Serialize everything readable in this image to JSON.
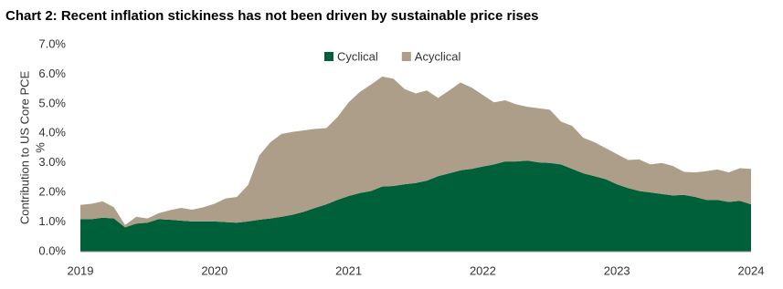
{
  "chart_data": {
    "type": "stacked-area",
    "title": "Chart 2: Recent inflation stickiness has not been driven by sustainable price rises",
    "y_label": [
      "Contribution to US Core PCE",
      "%"
    ],
    "categories": [
      "2019",
      null,
      null,
      null,
      null,
      null,
      null,
      null,
      null,
      null,
      null,
      null,
      "2020",
      null,
      null,
      null,
      null,
      null,
      null,
      null,
      null,
      null,
      null,
      null,
      "2021",
      null,
      null,
      null,
      null,
      null,
      null,
      null,
      null,
      null,
      null,
      null,
      "2022",
      null,
      null,
      null,
      null,
      null,
      null,
      null,
      null,
      null,
      null,
      null,
      "2023",
      null,
      null,
      null,
      null,
      null,
      null,
      null,
      null,
      null,
      null,
      null,
      "2024"
    ],
    "series": [
      {
        "name": "Cyclical",
        "color": "#006039",
        "values": [
          1.1,
          1.1,
          1.15,
          1.12,
          0.82,
          0.95,
          0.98,
          1.1,
          1.08,
          1.05,
          1.02,
          1.02,
          1.02,
          1.0,
          0.98,
          1.02,
          1.08,
          1.12,
          1.18,
          1.25,
          1.35,
          1.48,
          1.6,
          1.75,
          1.88,
          1.98,
          2.05,
          2.2,
          2.22,
          2.28,
          2.32,
          2.4,
          2.55,
          2.65,
          2.75,
          2.8,
          2.88,
          2.95,
          3.05,
          3.05,
          3.08,
          3.02,
          3.0,
          2.95,
          2.8,
          2.65,
          2.55,
          2.45,
          2.28,
          2.15,
          2.05,
          2.0,
          1.95,
          1.9,
          1.92,
          1.85,
          1.75,
          1.75,
          1.68,
          1.72,
          1.6
        ]
      },
      {
        "name": "Acyclical",
        "color": "#ac9e89",
        "values": [
          0.48,
          0.52,
          0.55,
          0.38,
          0.08,
          0.23,
          0.14,
          0.2,
          0.32,
          0.43,
          0.4,
          0.48,
          0.6,
          0.8,
          0.87,
          1.23,
          2.17,
          2.58,
          2.8,
          2.8,
          2.75,
          2.67,
          2.58,
          2.8,
          3.17,
          3.42,
          3.6,
          3.72,
          3.63,
          3.22,
          3.03,
          3.05,
          2.65,
          2.8,
          2.97,
          2.75,
          2.42,
          2.1,
          2.07,
          1.93,
          1.82,
          1.83,
          1.8,
          1.45,
          1.45,
          1.2,
          1.15,
          1.05,
          1.02,
          0.95,
          1.07,
          0.95,
          1.05,
          1.0,
          0.78,
          0.83,
          0.97,
          1.03,
          1.0,
          1.1,
          1.2
        ]
      }
    ],
    "ylim": [
      0,
      7
    ],
    "yticks": [
      {
        "value": 0,
        "label": "0.0%"
      },
      {
        "value": 1,
        "label": "1.0%"
      },
      {
        "value": 2,
        "label": "2.0%"
      },
      {
        "value": 3,
        "label": "3.0%"
      },
      {
        "value": 4,
        "label": "4.0%"
      },
      {
        "value": 5,
        "label": "5.0%"
      },
      {
        "value": 6,
        "label": "6.0%"
      },
      {
        "value": 7,
        "label": "7.0%"
      }
    ],
    "legend": "top-center"
  }
}
